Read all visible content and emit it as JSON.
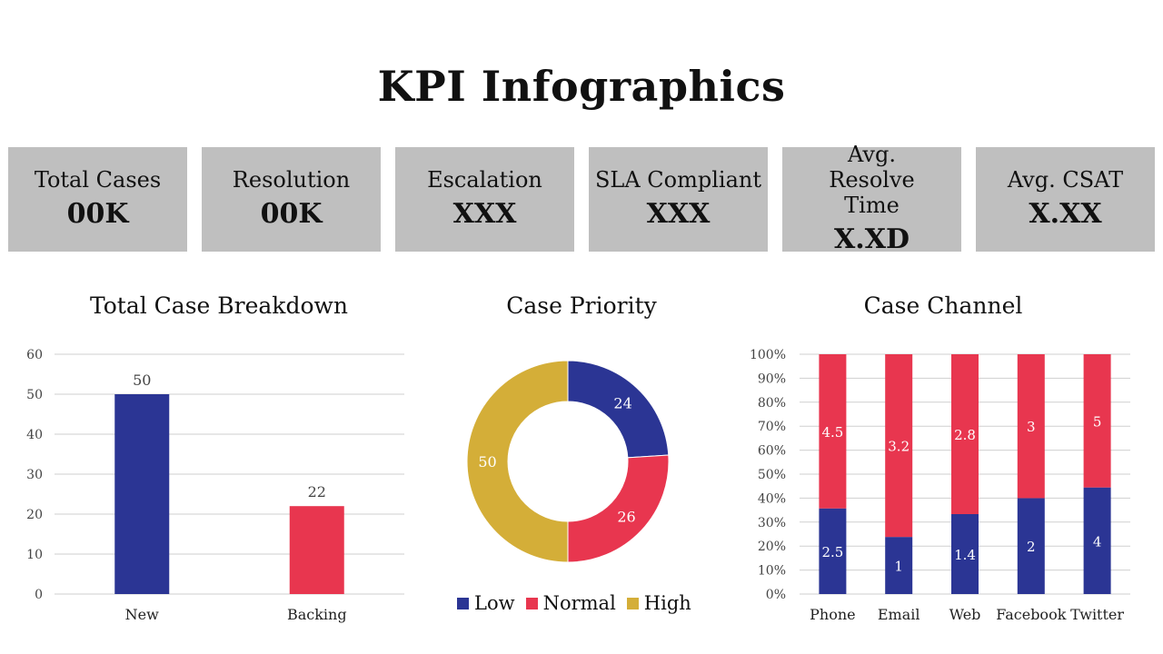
{
  "page": {
    "title": "KPI Infographics"
  },
  "kpis": [
    {
      "label": "Total Cases",
      "value": "00K"
    },
    {
      "label": "Resolution",
      "value": "00K"
    },
    {
      "label": "Escalation",
      "value": "XXX"
    },
    {
      "label": "SLA Compliant",
      "value": "XXX"
    },
    {
      "label": "Avg. Resolve Time",
      "value": "X.XD"
    },
    {
      "label": "Avg. CSAT",
      "value": "X.XX"
    }
  ],
  "colors": {
    "blue": "#2b3594",
    "red": "#e8364f",
    "gold": "#d4ae38",
    "kpi_bg": "#bfbfbf",
    "grid": "#cfcfcf"
  },
  "chart_data": [
    {
      "type": "bar",
      "title": "Total Case Breakdown",
      "categories": [
        "New",
        "Backing"
      ],
      "values": [
        50,
        22
      ],
      "ylim": [
        0,
        60
      ],
      "yticks": [
        0,
        10,
        20,
        30,
        40,
        50,
        60
      ],
      "bar_colors": [
        "#2b3594",
        "#e8364f"
      ],
      "grid": true
    },
    {
      "type": "pie",
      "title": "Case Priority",
      "labels": [
        "Low",
        "Normal",
        "High"
      ],
      "values": [
        24,
        26,
        50
      ],
      "slice_colors": [
        "#2b3594",
        "#e8364f",
        "#d4ae38"
      ],
      "donut": true,
      "legend_position": "bottom"
    },
    {
      "type": "bar",
      "title": "Case Channel",
      "stacked": "percent",
      "categories": [
        "Phone",
        "Email",
        "Web",
        "Facebook",
        "Twitter"
      ],
      "series": [
        {
          "values": [
            2.5,
            1,
            1.4,
            2,
            4
          ],
          "color": "#2b3594"
        },
        {
          "values": [
            4.5,
            3.2,
            2.8,
            3,
            5
          ],
          "color": "#e8364f"
        }
      ],
      "ylim": [
        0,
        100
      ],
      "yticks": [
        "0%",
        "10%",
        "20%",
        "30%",
        "40%",
        "50%",
        "60%",
        "70%",
        "80%",
        "90%",
        "100%"
      ],
      "grid": true
    }
  ]
}
